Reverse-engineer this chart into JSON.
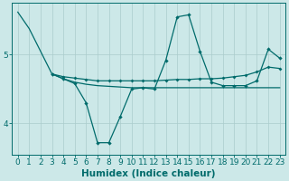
{
  "bg_color": "#cce8e8",
  "line_color": "#006b6b",
  "grid_color": "#aacccc",
  "xlabel": "Humidex (Indice chaleur)",
  "xlabel_fontsize": 7.5,
  "tick_fontsize": 6.5,
  "xlim": [
    -0.5,
    23.5
  ],
  "ylim": [
    3.55,
    5.75
  ],
  "yticks": [
    4,
    5
  ],
  "xticks": [
    0,
    1,
    2,
    3,
    4,
    5,
    6,
    7,
    8,
    9,
    10,
    11,
    12,
    13,
    14,
    15,
    16,
    17,
    18,
    19,
    20,
    21,
    22,
    23
  ],
  "line1_x": [
    0,
    1,
    2,
    3,
    4,
    5,
    6,
    7,
    8,
    9,
    10,
    11,
    12,
    13,
    14,
    15,
    16,
    17,
    18,
    19,
    20,
    21,
    22,
    23
  ],
  "line1_y": [
    5.62,
    5.38,
    5.05,
    4.72,
    4.65,
    4.6,
    4.57,
    4.55,
    4.54,
    4.53,
    4.52,
    4.52,
    4.52,
    4.52,
    4.52,
    4.52,
    4.52,
    4.52,
    4.52,
    4.52,
    4.52,
    4.52,
    4.52,
    4.52
  ],
  "line2_x": [
    3,
    4,
    5,
    6,
    7,
    8,
    9,
    10,
    11,
    12,
    13,
    14,
    15,
    16,
    17,
    18,
    19,
    20,
    21,
    22,
    23
  ],
  "line2_y": [
    4.72,
    4.65,
    4.58,
    4.3,
    3.72,
    3.72,
    4.1,
    4.5,
    4.52,
    4.5,
    4.92,
    5.55,
    5.58,
    5.05,
    4.6,
    4.55,
    4.55,
    4.55,
    4.62,
    5.08,
    4.95
  ],
  "line3_x": [
    3,
    4,
    5,
    6,
    7,
    8,
    9,
    10,
    11,
    12,
    13,
    14,
    15,
    16,
    17,
    18,
    19,
    20,
    21,
    22,
    23
  ],
  "line3_y": [
    4.72,
    4.68,
    4.66,
    4.64,
    4.62,
    4.62,
    4.62,
    4.62,
    4.62,
    4.62,
    4.63,
    4.64,
    4.64,
    4.65,
    4.65,
    4.66,
    4.68,
    4.7,
    4.75,
    4.82,
    4.8
  ]
}
